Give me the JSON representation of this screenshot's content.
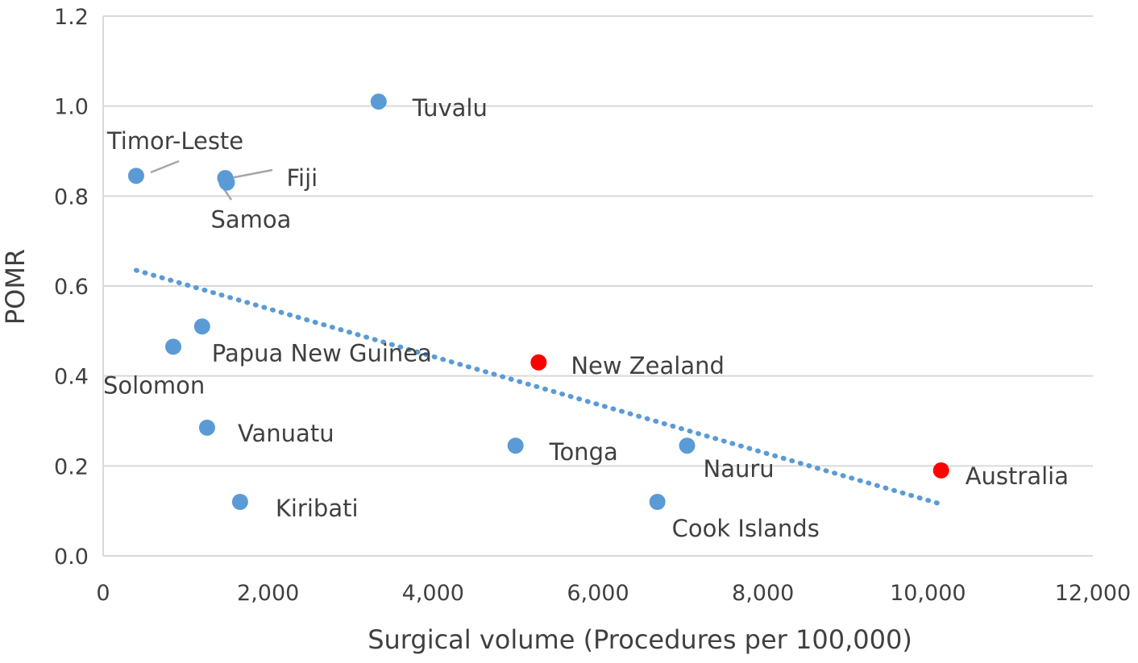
{
  "chart_data": {
    "type": "scatter",
    "title": "",
    "xlabel": "Surgical volume (Procedures per 100,000)",
    "ylabel": "POMR",
    "xlim": [
      0,
      12000
    ],
    "ylim": [
      0,
      1.2
    ],
    "x_ticks": [
      "0",
      "2,000",
      "4,000",
      "6,000",
      "8,000",
      "10,000",
      "12,000"
    ],
    "y_ticks": [
      "0.0",
      "0.2",
      "0.4",
      "0.6",
      "0.8",
      "1.0",
      "1.2"
    ],
    "grid": "horizontal",
    "colors": {
      "blue": "#5B9BD5",
      "red": "#FF0000",
      "grid": "#D9D9D9",
      "text": "#404040"
    },
    "points": [
      {
        "label": "Timor-Leste",
        "x": 400,
        "y": 0.845,
        "color": "blue"
      },
      {
        "label": "Fiji",
        "x": 1480,
        "y": 0.84,
        "color": "blue"
      },
      {
        "label": "Samoa",
        "x": 1500,
        "y": 0.83,
        "color": "blue"
      },
      {
        "label": "Tuvalu",
        "x": 3340,
        "y": 1.01,
        "color": "blue"
      },
      {
        "label": "Papua New Guinea",
        "x": 1200,
        "y": 0.51,
        "color": "blue"
      },
      {
        "label": "Solomon",
        "x": 850,
        "y": 0.465,
        "color": "blue"
      },
      {
        "label": "Vanuatu",
        "x": 1260,
        "y": 0.285,
        "color": "blue"
      },
      {
        "label": "Kiribati",
        "x": 1660,
        "y": 0.12,
        "color": "blue"
      },
      {
        "label": "New Zealand",
        "x": 5280,
        "y": 0.43,
        "color": "red"
      },
      {
        "label": "Tonga",
        "x": 5000,
        "y": 0.245,
        "color": "blue"
      },
      {
        "label": "Nauru",
        "x": 7080,
        "y": 0.245,
        "color": "blue"
      },
      {
        "label": "Cook Islands",
        "x": 6720,
        "y": 0.12,
        "color": "blue"
      },
      {
        "label": "Australia",
        "x": 10160,
        "y": 0.19,
        "color": "red"
      }
    ],
    "trendline": {
      "style": "dotted",
      "color": "blue",
      "x": [
        400,
        10160
      ],
      "y": [
        0.635,
        0.115
      ]
    }
  }
}
